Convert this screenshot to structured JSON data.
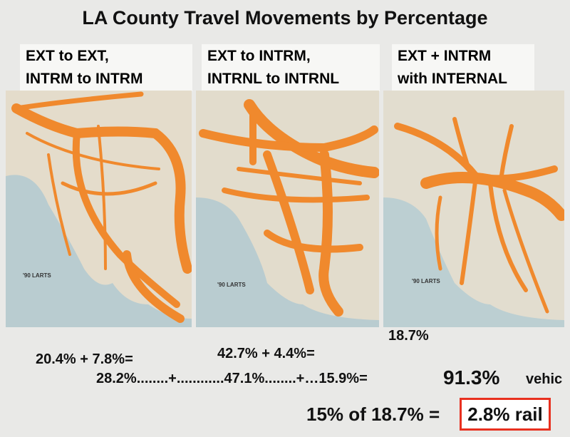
{
  "header": {
    "title": "LA County Travel Movements by Percentage"
  },
  "panels": [
    {
      "heading": [
        "EXT to EXT,",
        "INTRM to INTRM"
      ],
      "caption": "'90 LARTS"
    },
    {
      "heading": [
        "EXT to INTRM,",
        "INTRNL to INTRNL"
      ],
      "caption": "'90 LARTS"
    },
    {
      "heading": [
        "EXT + INTRM",
        "with INTERNAL"
      ],
      "caption": "'90 LARTS"
    }
  ],
  "notes": {
    "internal_share": "18.7%",
    "sum_1": "20.4% + 7.8%=",
    "sum_2": "42.7% + 4.4%=",
    "total_line": "28.2%........+............47.1%........+…15.9%=",
    "total": "91.3%",
    "total_unit": "vehic",
    "rail_calc": "15% of 18.7% =",
    "rail_result": "2.8% rail"
  }
}
